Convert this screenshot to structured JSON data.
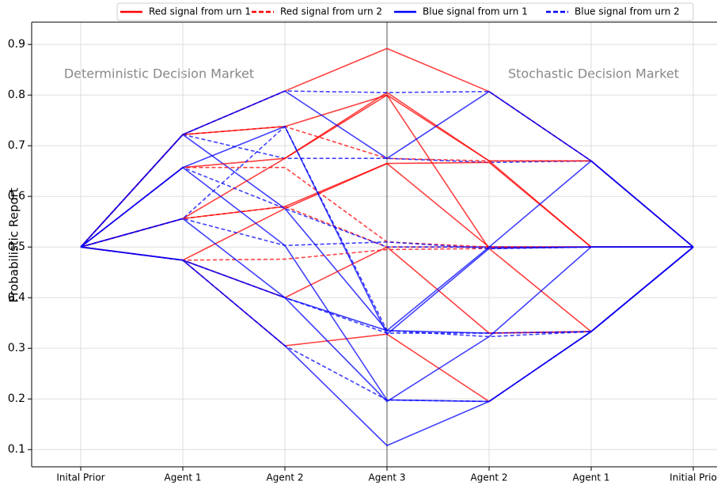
{
  "chart_data": {
    "type": "line",
    "ylabel": "Probabilistic Report",
    "annotations": [
      "Deterministic Decision Market",
      "Stochastic Decision Market"
    ],
    "categories": [
      "Inital Prior",
      "Agent 1",
      "Agent 2",
      "Agent 3",
      "Agent 2",
      "Agent 1",
      "Initial Prio"
    ],
    "divider_category": 3,
    "ylim": [
      0.066,
      0.944
    ],
    "yticks": [
      0.1,
      0.2,
      0.3,
      0.4,
      0.5,
      0.6,
      0.7,
      0.8,
      0.9
    ],
    "grid": true,
    "legend": "top",
    "series": [
      {
        "name": "Red signal from urn 1",
        "color": "#ff0000",
        "linestyle": "solid",
        "values": [
          0.5,
          0.722,
          0.808,
          0.892,
          0.807,
          0.67,
          0.5
        ]
      },
      {
        "name": "Red signal from urn 2",
        "color": "#ff0000",
        "linestyle": "dashed",
        "values": [
          0.5,
          0.722,
          0.738,
          0.675,
          0.67,
          0.67,
          0.5
        ]
      },
      {
        "name": "Blue signal from urn 1",
        "color": "#0000ff",
        "linestyle": "solid",
        "values": [
          0.5,
          0.722,
          0.576,
          0.335,
          0.33,
          0.333,
          0.5
        ]
      },
      {
        "name": "Blue signal from urn 2",
        "color": "#0000ff",
        "linestyle": "dashed",
        "values": [
          0.5,
          0.722,
          0.675,
          0.675,
          0.667,
          0.67,
          0.5
        ]
      },
      {
        "name": "Red signal from urn 1",
        "color": "#ff0000",
        "linestyle": "solid",
        "values": [
          0.5,
          0.722,
          0.738,
          0.8,
          0.67,
          0.5,
          0.5
        ]
      },
      {
        "name": "Red signal from urn 1",
        "color": "#ff0000",
        "linestyle": "solid",
        "values": [
          0.5,
          0.657,
          0.675,
          0.805,
          0.67,
          0.67,
          0.5
        ]
      },
      {
        "name": "Red signal from urn 1",
        "color": "#ff0000",
        "linestyle": "solid",
        "values": [
          0.5,
          0.556,
          0.675,
          0.8,
          0.497,
          0.333,
          0.5
        ]
      },
      {
        "name": "Red signal from urn 1",
        "color": "#ff0000",
        "linestyle": "solid",
        "values": [
          0.5,
          0.474,
          0.576,
          0.665,
          0.5,
          0.5,
          0.5
        ]
      },
      {
        "name": "Red signal from urn 1",
        "color": "#ff0000",
        "linestyle": "solid",
        "values": [
          0.5,
          0.474,
          0.4,
          0.5,
          0.33,
          0.333,
          0.5
        ]
      },
      {
        "name": "Red signal from urn 1",
        "color": "#ff0000",
        "linestyle": "solid",
        "values": [
          0.5,
          0.474,
          0.305,
          0.328,
          0.195,
          0.333,
          0.5
        ]
      },
      {
        "name": "Red signal from urn 1",
        "color": "#ff0000",
        "linestyle": "solid",
        "values": [
          0.5,
          0.556,
          0.58,
          0.665,
          0.667,
          0.5,
          0.5
        ]
      },
      {
        "name": "Red signal from urn 2",
        "color": "#ff0000",
        "linestyle": "dashed",
        "values": [
          0.5,
          0.657,
          0.657,
          0.51,
          0.5,
          0.5,
          0.5
        ]
      },
      {
        "name": "Red signal from urn 2",
        "color": "#ff0000",
        "linestyle": "dashed",
        "values": [
          0.5,
          0.556,
          0.58,
          0.5,
          0.5,
          0.5,
          0.5
        ]
      },
      {
        "name": "Red signal from urn 2",
        "color": "#ff0000",
        "linestyle": "dashed",
        "values": [
          0.5,
          0.474,
          0.476,
          0.495,
          0.497,
          0.5,
          0.5
        ]
      },
      {
        "name": "Blue signal from urn 1",
        "color": "#0000ff",
        "linestyle": "solid",
        "values": [
          0.5,
          0.657,
          0.503,
          0.198,
          0.195,
          0.333,
          0.5
        ]
      },
      {
        "name": "Blue signal from urn 1",
        "color": "#0000ff",
        "linestyle": "solid",
        "values": [
          0.5,
          0.474,
          0.305,
          0.108,
          0.195,
          0.333,
          0.5
        ]
      },
      {
        "name": "Blue signal from urn 1",
        "color": "#0000ff",
        "linestyle": "solid",
        "values": [
          0.5,
          0.556,
          0.4,
          0.195,
          0.323,
          0.5,
          0.5
        ]
      },
      {
        "name": "Blue signal from urn 1",
        "color": "#0000ff",
        "linestyle": "solid",
        "values": [
          0.5,
          0.474,
          0.4,
          0.335,
          0.5,
          0.67,
          0.5
        ]
      },
      {
        "name": "Blue signal from urn 1",
        "color": "#0000ff",
        "linestyle": "solid",
        "values": [
          0.5,
          0.722,
          0.808,
          0.675,
          0.807,
          0.67,
          0.5
        ]
      },
      {
        "name": "Blue signal from urn 1",
        "color": "#0000ff",
        "linestyle": "solid",
        "values": [
          0.5,
          0.657,
          0.738,
          0.328,
          0.497,
          0.5,
          0.5
        ]
      },
      {
        "name": "Blue signal from urn 2",
        "color": "#0000ff",
        "linestyle": "dashed",
        "values": [
          0.5,
          0.657,
          0.576,
          0.5,
          0.5,
          0.5,
          0.5
        ]
      },
      {
        "name": "Blue signal from urn 2",
        "color": "#0000ff",
        "linestyle": "dashed",
        "values": [
          0.5,
          0.556,
          0.503,
          0.51,
          0.497,
          0.5,
          0.5
        ]
      },
      {
        "name": "Blue signal from urn 2",
        "color": "#0000ff",
        "linestyle": "dashed",
        "values": [
          0.5,
          0.474,
          0.4,
          0.33,
          0.33,
          0.333,
          0.5
        ]
      },
      {
        "name": "Blue signal from urn 2",
        "color": "#0000ff",
        "linestyle": "dashed",
        "values": [
          0.5,
          0.474,
          0.305,
          0.198,
          0.195,
          0.333,
          0.5
        ]
      },
      {
        "name": "Blue signal from urn 2",
        "color": "#0000ff",
        "linestyle": "dashed",
        "values": [
          0.5,
          0.722,
          0.808,
          0.805,
          0.807,
          0.67,
          0.5
        ]
      },
      {
        "name": "Blue signal from urn 2",
        "color": "#0000ff",
        "linestyle": "dashed",
        "values": [
          0.5,
          0.556,
          0.738,
          0.335,
          0.323,
          0.333,
          0.5
        ]
      }
    ]
  }
}
